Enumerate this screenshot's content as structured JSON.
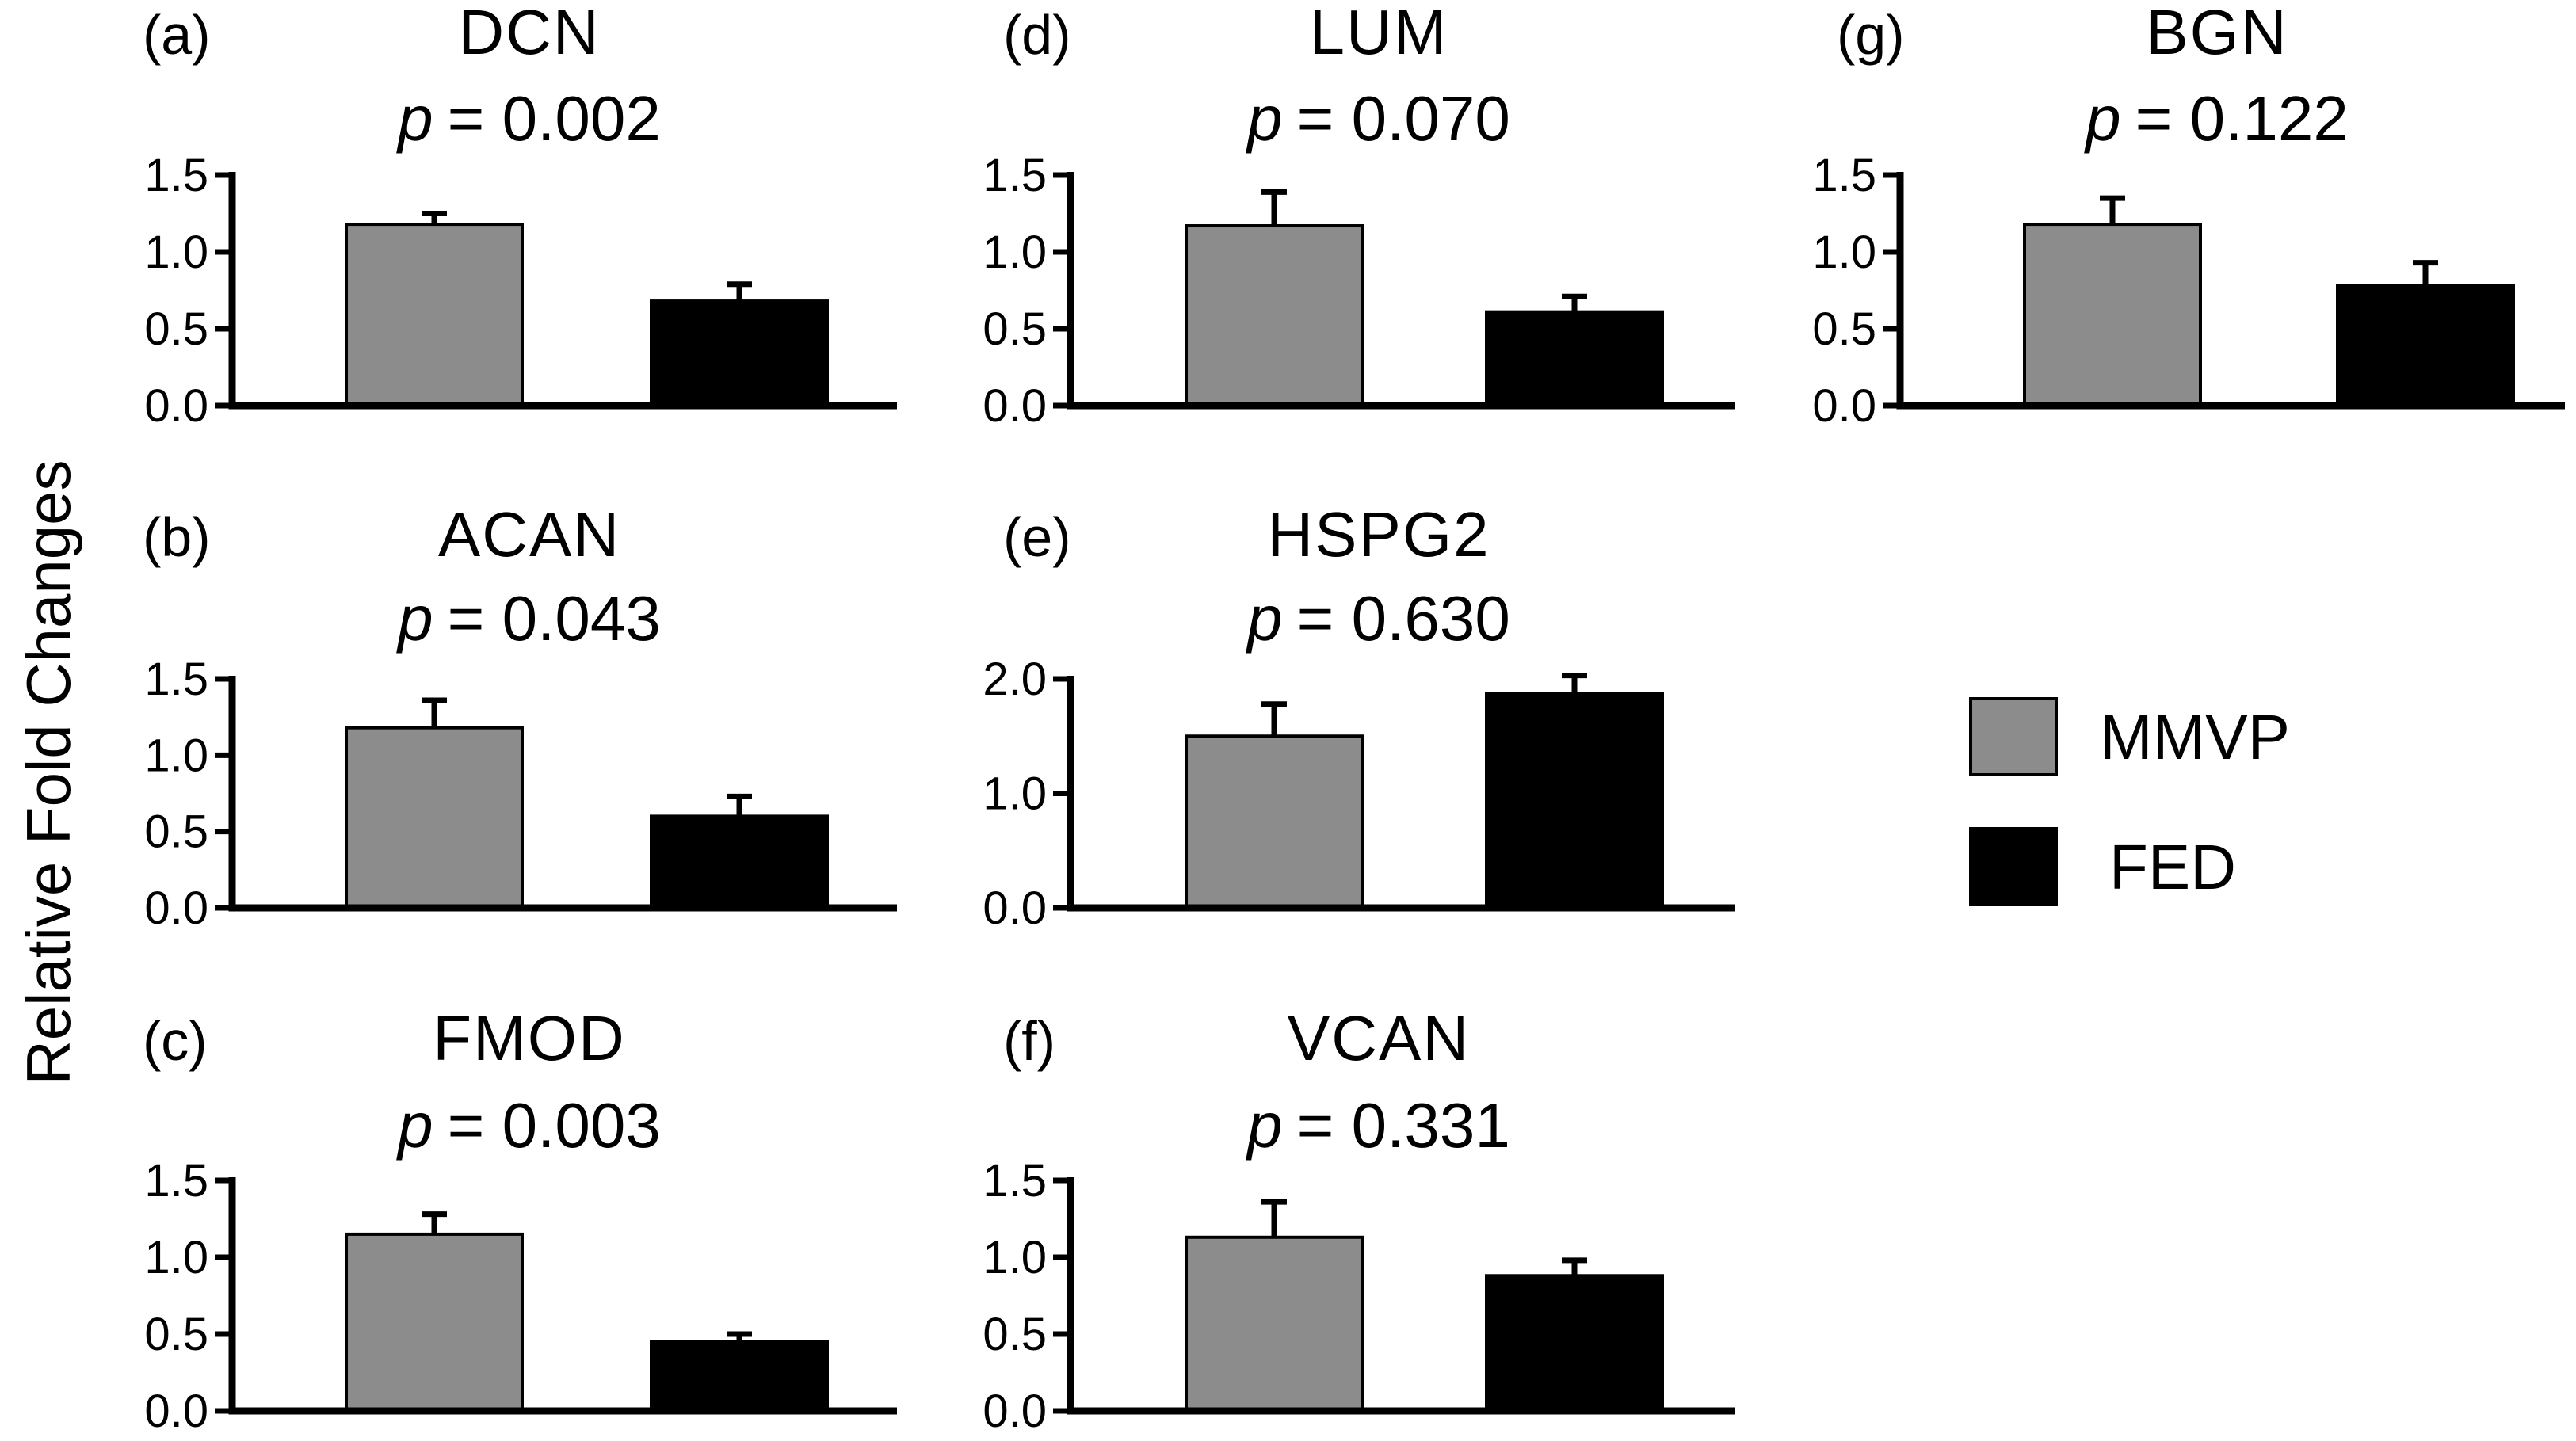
{
  "y_axis_label": "Relative Fold Changes",
  "legend": {
    "items": [
      {
        "label": "MMVP",
        "color": "#8c8c8c"
      },
      {
        "label": "FED",
        "color": "#000000"
      }
    ]
  },
  "chart_data": [
    {
      "type": "bar",
      "panel": "(a)",
      "title": "DCN",
      "p_label": "p",
      "p_value_text": "= 0.002",
      "categories": [
        "MMVP",
        "FED"
      ],
      "values": [
        1.18,
        0.68
      ],
      "errors": [
        0.07,
        0.11
      ],
      "ylim": [
        0,
        1.5
      ],
      "yticks": [
        "0.0",
        "0.5",
        "1.0",
        "1.5"
      ],
      "ytick_values": [
        0,
        0.5,
        1.0,
        1.5
      ],
      "xlabel": "",
      "ylabel": "Relative Fold Changes"
    },
    {
      "type": "bar",
      "panel": "(b)",
      "title": "ACAN",
      "p_label": "p",
      "p_value_text": "= 0.043",
      "categories": [
        "MMVP",
        "FED"
      ],
      "values": [
        1.18,
        0.6
      ],
      "errors": [
        0.18,
        0.13
      ],
      "ylim": [
        0,
        1.5
      ],
      "yticks": [
        "0.0",
        "0.5",
        "1.0",
        "1.5"
      ],
      "ytick_values": [
        0,
        0.5,
        1.0,
        1.5
      ],
      "xlabel": "",
      "ylabel": "Relative Fold Changes"
    },
    {
      "type": "bar",
      "panel": "(c)",
      "title": "FMOD",
      "p_label": "p",
      "p_value_text": "= 0.003",
      "categories": [
        "MMVP",
        "FED"
      ],
      "values": [
        1.15,
        0.45
      ],
      "errors": [
        0.13,
        0.05
      ],
      "ylim": [
        0,
        1.5
      ],
      "yticks": [
        "0.0",
        "0.5",
        "1.0",
        "1.5"
      ],
      "ytick_values": [
        0,
        0.5,
        1.0,
        1.5
      ],
      "xlabel": "",
      "ylabel": "Relative Fold Changes"
    },
    {
      "type": "bar",
      "panel": "(d)",
      "title": "LUM",
      "p_label": "p",
      "p_value_text": "= 0.070",
      "categories": [
        "MMVP",
        "FED"
      ],
      "values": [
        1.17,
        0.61
      ],
      "errors": [
        0.22,
        0.1
      ],
      "ylim": [
        0,
        1.5
      ],
      "yticks": [
        "0.0",
        "0.5",
        "1.0",
        "1.5"
      ],
      "ytick_values": [
        0,
        0.5,
        1.0,
        1.5
      ],
      "xlabel": "",
      "ylabel": "Relative Fold Changes"
    },
    {
      "type": "bar",
      "panel": "(e)",
      "title": "HSPG2",
      "p_label": "p",
      "p_value_text": "= 0.630",
      "categories": [
        "MMVP",
        "FED"
      ],
      "values": [
        1.5,
        1.87
      ],
      "errors": [
        0.28,
        0.16
      ],
      "ylim": [
        0,
        2.0
      ],
      "yticks": [
        "0.0",
        "1.0",
        "2.0"
      ],
      "ytick_values": [
        0,
        1.0,
        2.0
      ],
      "xlabel": "",
      "ylabel": "Relative Fold Changes"
    },
    {
      "type": "bar",
      "panel": "(f)",
      "title": "VCAN",
      "p_label": "p",
      "p_value_text": "= 0.331",
      "categories": [
        "MMVP",
        "FED"
      ],
      "values": [
        1.13,
        0.88
      ],
      "errors": [
        0.23,
        0.1
      ],
      "ylim": [
        0,
        1.5
      ],
      "yticks": [
        "0.0",
        "0.5",
        "1.0",
        "1.5"
      ],
      "ytick_values": [
        0,
        0.5,
        1.0,
        1.5
      ],
      "xlabel": "",
      "ylabel": "Relative Fold Changes"
    },
    {
      "type": "bar",
      "panel": "(g)",
      "title": "BGN",
      "p_label": "p",
      "p_value_text": "= 0.122",
      "categories": [
        "MMVP",
        "FED"
      ],
      "values": [
        1.18,
        0.78
      ],
      "errors": [
        0.17,
        0.15
      ],
      "ylim": [
        0,
        1.5
      ],
      "yticks": [
        "0.0",
        "0.5",
        "1.0",
        "1.5"
      ],
      "ytick_values": [
        0,
        0.5,
        1.0,
        1.5
      ],
      "xlabel": "",
      "ylabel": "Relative Fold Changes"
    }
  ]
}
